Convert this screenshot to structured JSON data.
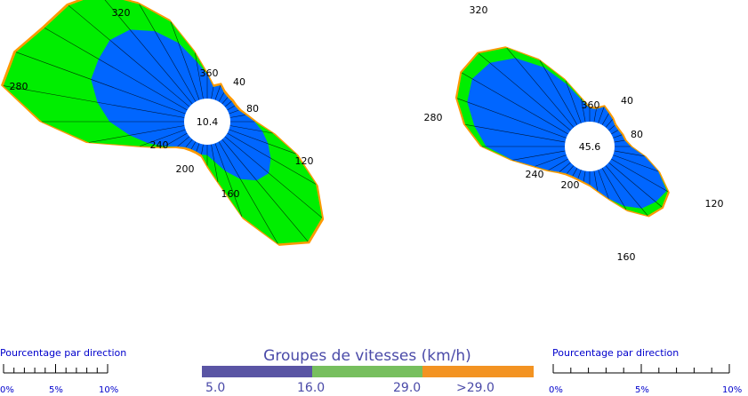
{
  "chart_data": [
    {
      "type": "radar",
      "subtype": "wind-rose",
      "calm_value": "10.4",
      "direction_labels": [
        "40",
        "80",
        "120",
        "160",
        "200",
        "240",
        "280",
        "320",
        "360"
      ],
      "directions": [
        10,
        20,
        30,
        40,
        50,
        60,
        70,
        80,
        90,
        100,
        110,
        120,
        130,
        140,
        150,
        160,
        170,
        180,
        190,
        200,
        210,
        220,
        230,
        240,
        250,
        260,
        270,
        280,
        290,
        300,
        310,
        320,
        330,
        340,
        350,
        360
      ],
      "units": "% per direction",
      "series": [
        {
          "name": "5.0",
          "values": [
            0.7,
            0.9,
            0.6,
            0.5,
            0.5,
            0.5,
            0.6,
            0.9,
            1.4,
            1.9,
            2.4,
            2.9,
            3.3,
            3.1,
            2.5,
            1.7,
            1.0,
            0.6,
            0.6,
            0.5,
            0.5,
            0.6,
            0.9,
            1.5,
            2.3,
            3.2,
            4.3,
            5.1,
            5.8,
            5.9,
            6.0,
            5.6,
            4.7,
            3.5,
            2.2,
            1.4
          ]
        },
        {
          "name": "16.0",
          "values": [
            0.7,
            0.9,
            0.6,
            0.5,
            0.5,
            0.5,
            0.6,
            0.9,
            1.4,
            2.5,
            4.0,
            5.8,
            7.1,
            7.4,
            6.5,
            4.3,
            2.1,
            1.2,
            0.6,
            0.5,
            0.5,
            0.6,
            0.9,
            1.6,
            2.7,
            5.3,
            7.7,
            10.1,
            10.0,
            9.3,
            9.0,
            8.2,
            6.4,
            4.8,
            2.7,
            1.4
          ]
        },
        {
          "name": "29.0",
          "values": [
            0.7,
            0.9,
            0.6,
            0.5,
            0.5,
            0.5,
            0.6,
            0.9,
            1.4,
            2.5,
            4.1,
            5.9,
            7.3,
            7.7,
            6.8,
            4.5,
            2.2,
            1.2,
            0.6,
            0.5,
            0.5,
            0.6,
            0.9,
            1.6,
            2.8,
            5.6,
            8.2,
            10.6,
            10.4,
            9.5,
            9.1,
            8.3,
            6.5,
            4.8,
            2.7,
            1.4
          ]
        }
      ]
    },
    {
      "type": "radar",
      "subtype": "wind-rose",
      "calm_value": "45.6",
      "direction_labels": [
        "40",
        "80",
        "120",
        "160",
        "200",
        "240",
        "280",
        "320",
        "360"
      ],
      "directions": [
        10,
        20,
        30,
        40,
        50,
        60,
        70,
        80,
        90,
        100,
        110,
        120,
        130,
        140,
        150,
        160,
        170,
        180,
        190,
        200,
        210,
        220,
        230,
        240,
        250,
        260,
        270,
        280,
        290,
        300,
        310,
        320,
        330,
        340,
        350,
        360
      ],
      "units": "% per direction",
      "series": [
        {
          "name": "5.0",
          "values": [
            1.0,
            1.3,
            1.0,
            0.8,
            0.6,
            0.6,
            0.7,
            0.8,
            1.2,
            2.3,
            3.6,
            4.8,
            4.6,
            4.2,
            3.3,
            2.3,
            1.5,
            1.0,
            0.8,
            0.7,
            0.7,
            0.8,
            1.1,
            1.7,
            2.5,
            4.0,
            5.9,
            6.9,
            7.9,
            8.3,
            7.9,
            6.8,
            5.0,
            3.1,
            1.7,
            1.0
          ]
        },
        {
          "name": "16.0",
          "values": [
            1.0,
            1.3,
            1.0,
            0.8,
            0.6,
            0.6,
            0.7,
            0.8,
            1.2,
            2.3,
            3.6,
            4.9,
            5.2,
            4.9,
            3.6,
            2.3,
            1.5,
            1.0,
            0.8,
            0.7,
            0.7,
            0.8,
            1.1,
            1.7,
            2.5,
            4.0,
            6.2,
            7.6,
            8.7,
            9.2,
            9.0,
            7.8,
            5.6,
            3.4,
            1.8,
            1.0
          ]
        },
        {
          "name": "29.0",
          "values": [
            1.0,
            1.3,
            1.0,
            0.8,
            0.6,
            0.6,
            0.7,
            0.8,
            1.2,
            2.3,
            3.6,
            4.9,
            5.2,
            4.9,
            3.6,
            2.3,
            1.5,
            1.0,
            0.8,
            0.7,
            0.7,
            0.8,
            1.1,
            1.7,
            2.5,
            4.0,
            6.2,
            7.6,
            8.7,
            9.2,
            9.0,
            7.8,
            5.6,
            3.4,
            1.8,
            1.0
          ]
        }
      ]
    }
  ],
  "legend": {
    "title": "Groupes de vitesses (km/h)",
    "labels": [
      "5.0",
      "16.0",
      "29.0",
      ">29.0"
    ],
    "colors": {
      "blue": "#0066ff",
      "green": "#00ee00",
      "orange": "#ff9900"
    },
    "bar_colors": [
      "#5a55a4",
      "#77bf5e",
      "#f39322"
    ]
  },
  "scales": [
    {
      "title": "Pourcentage par direction",
      "ticks": [
        "0%",
        "5%",
        "10%"
      ]
    },
    {
      "title": "Pourcentage par direction",
      "ticks": [
        "0%",
        "5%",
        "10%"
      ]
    }
  ]
}
